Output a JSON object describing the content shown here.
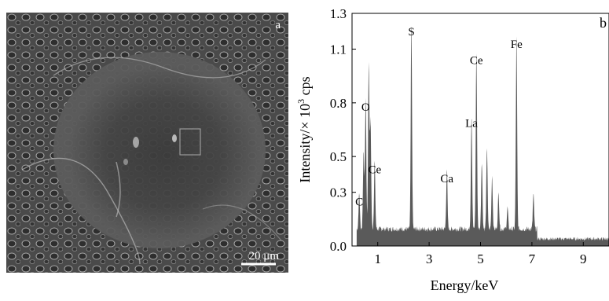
{
  "sem": {
    "panel_label": "a",
    "scale_bar_text": "20 μm"
  },
  "eds": {
    "panel_label": "b"
  },
  "chart_data": {
    "type": "bar",
    "title": "",
    "xlabel": "Energy/keV",
    "ylabel_parts": [
      "Intensity/× 10",
      "3",
      " cps"
    ],
    "xlim": [
      0,
      10
    ],
    "ylim": [
      0,
      1.3
    ],
    "xticks": [
      "1",
      "3",
      "5",
      "7",
      "9"
    ],
    "xtick_values": [
      1,
      3,
      5,
      7,
      9
    ],
    "yticks": [
      "0.0",
      "0.3",
      "0.5",
      "0.8",
      "1.1",
      "1.3"
    ],
    "ytick_values": [
      0.0,
      0.3,
      0.5,
      0.8,
      1.1,
      1.3
    ],
    "fill_color": "#5a5a5a",
    "peaks": [
      {
        "label": "C",
        "energy": 0.28,
        "intensity": 0.2
      },
      {
        "label": "O",
        "energy": 0.53,
        "intensity": 0.73
      },
      {
        "label": "Ce",
        "energy": 0.88,
        "intensity": 0.38
      },
      {
        "label": "S",
        "energy": 2.31,
        "intensity": 1.15
      },
      {
        "label": "Ca",
        "energy": 3.69,
        "intensity": 0.33
      },
      {
        "label": "La",
        "energy": 4.65,
        "intensity": 0.64
      },
      {
        "label": "Ce",
        "energy": 4.84,
        "intensity": 0.99
      },
      {
        "label": "Fe",
        "energy": 6.4,
        "intensity": 1.08
      }
    ]
  }
}
